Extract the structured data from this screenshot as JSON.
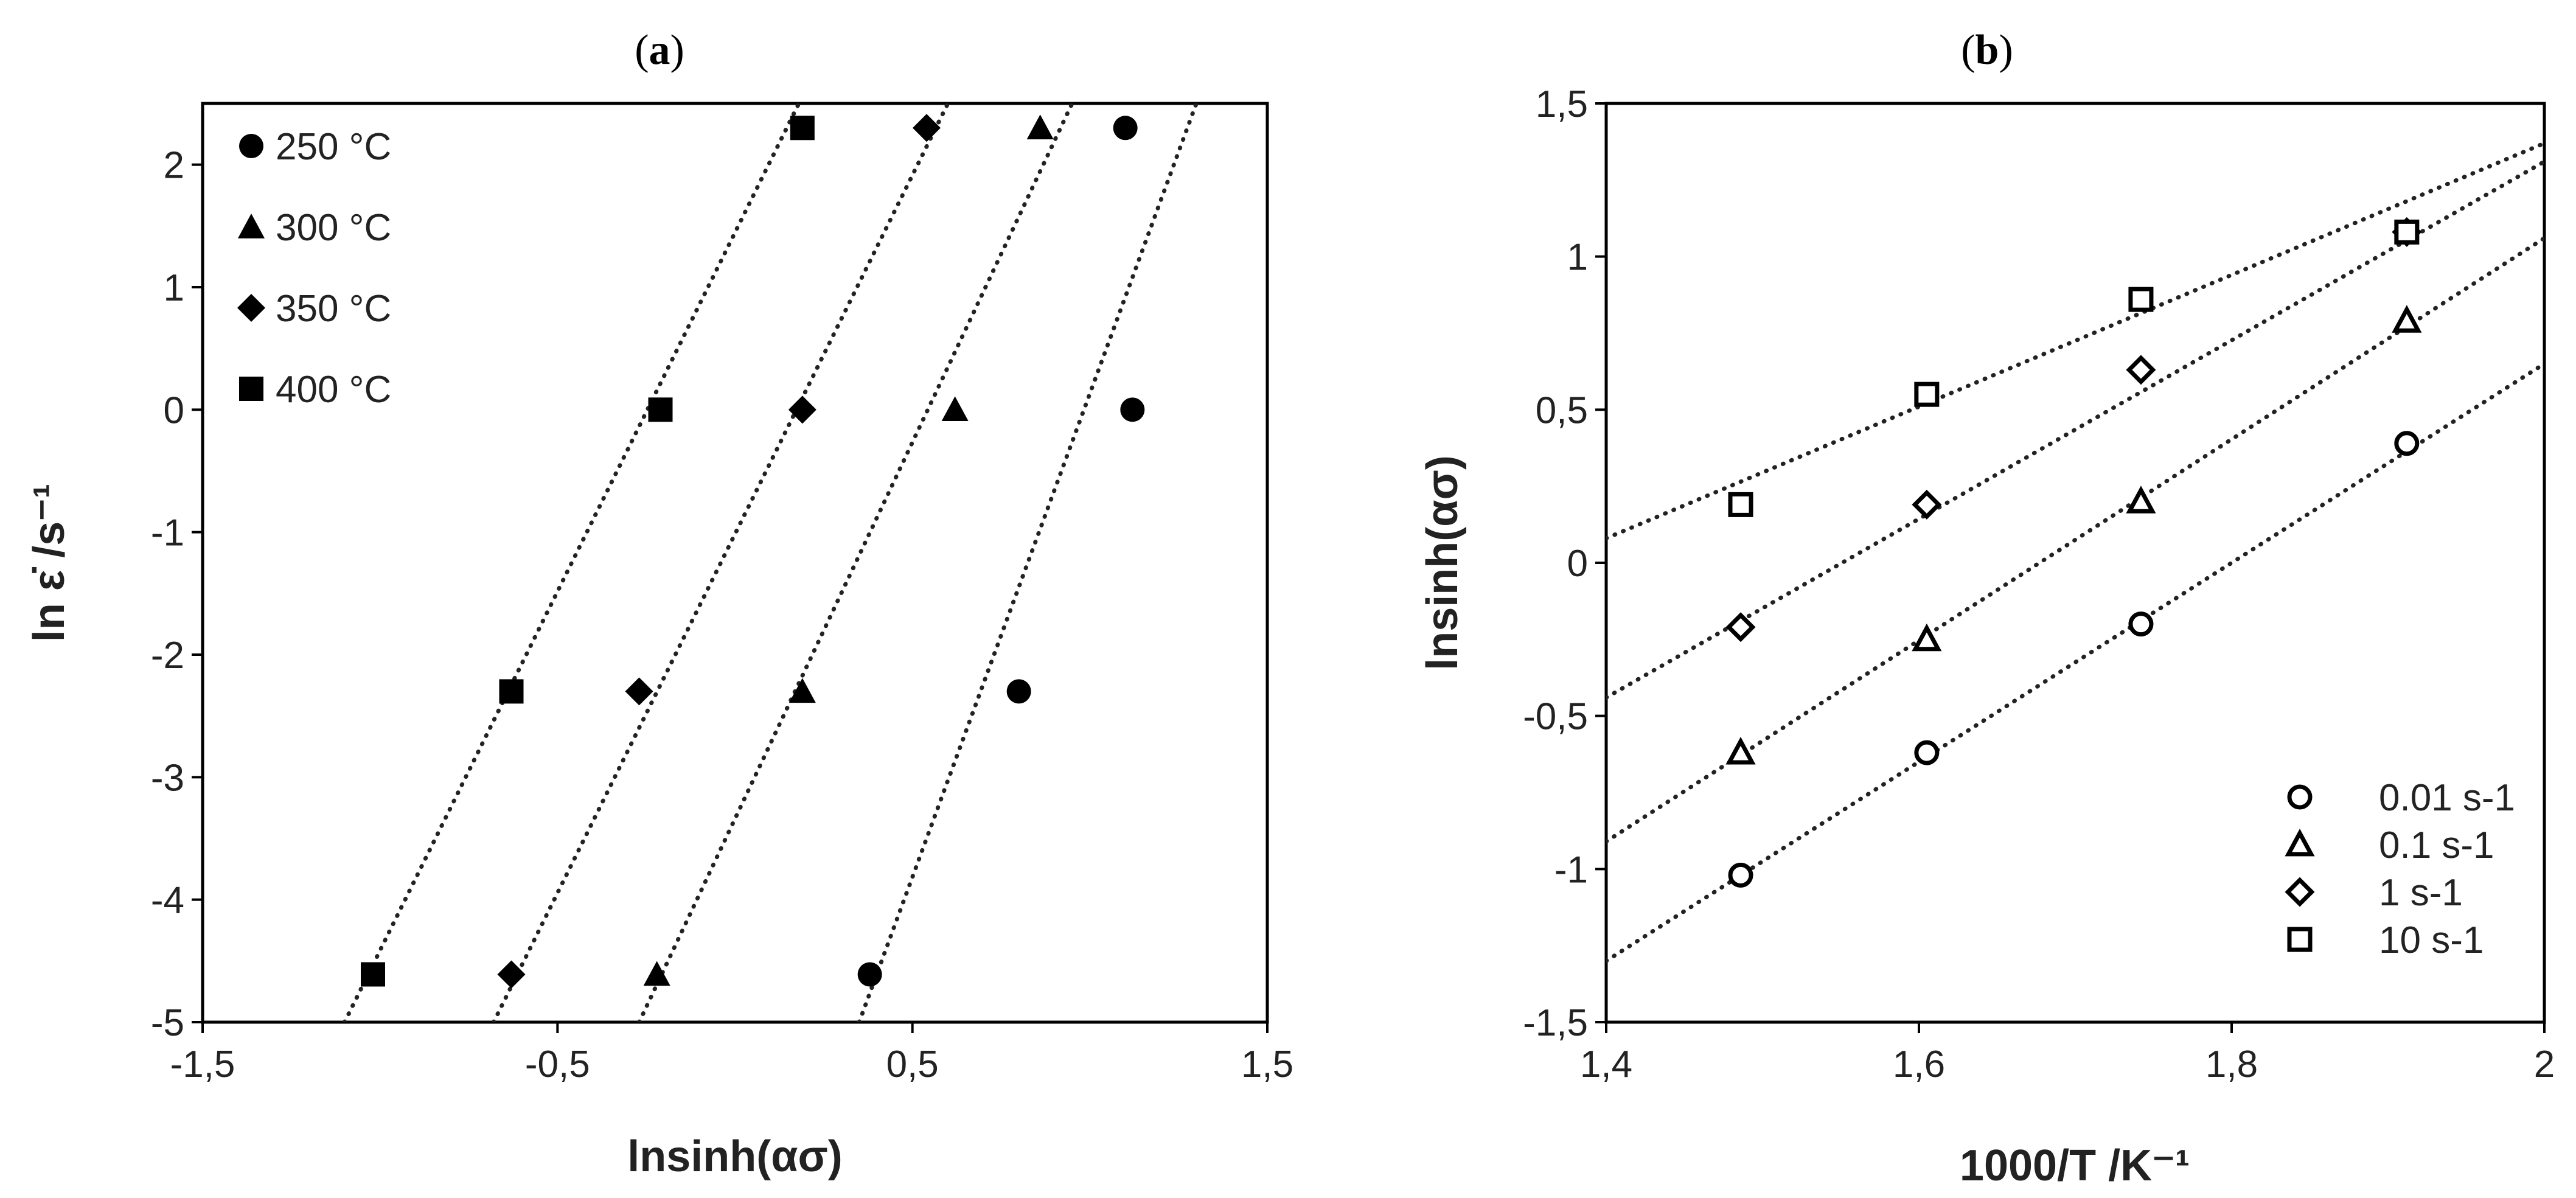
{
  "chart_data": [
    {
      "panel": "(a)",
      "type": "scatter",
      "xlabel": "lnsinh(ασ)",
      "ylabel": "ln ε̇ /s⁻¹",
      "xlim": [
        -1.5,
        1.5
      ],
      "ylim": [
        -5,
        2.5
      ],
      "xticks": [
        "-1,5",
        "-0,5",
        "0,5",
        "1,5"
      ],
      "yticks": [
        "-5",
        "-4",
        "-3",
        "-2",
        "-1",
        "0",
        "1",
        "2"
      ],
      "grid": false,
      "legend_position": "top-left",
      "series": [
        {
          "name": "250 °C",
          "marker": "circle",
          "x": [
            0.38,
            0.8,
            1.12,
            1.1
          ],
          "y": [
            -4.61,
            -2.3,
            0,
            2.3
          ],
          "fit": [
            [
              0.35,
              -5
            ],
            [
              1.3,
              2.5
            ]
          ]
        },
        {
          "name": "300 °C",
          "marker": "triangle",
          "x": [
            -0.22,
            0.19,
            0.62,
            0.86
          ],
          "y": [
            -4.61,
            -2.3,
            0,
            2.3
          ],
          "fit": [
            [
              -0.27,
              -5
            ],
            [
              0.95,
              2.5
            ]
          ]
        },
        {
          "name": "350 °C",
          "marker": "diamond",
          "x": [
            -0.63,
            -0.27,
            0.19,
            0.54
          ],
          "y": [
            -4.61,
            -2.3,
            0,
            2.3
          ],
          "fit": [
            [
              -0.68,
              -5
            ],
            [
              0.6,
              2.5
            ]
          ]
        },
        {
          "name": "400 °C",
          "marker": "square",
          "x": [
            -1.02,
            -0.63,
            -0.21,
            0.19
          ],
          "y": [
            -4.61,
            -2.3,
            0,
            2.3
          ],
          "fit": [
            [
              -1.1,
              -5
            ],
            [
              0.18,
              2.5
            ]
          ]
        }
      ]
    },
    {
      "panel": "(b)",
      "type": "scatter",
      "xlabel": "1000/T   /K⁻¹",
      "ylabel": "lnsinh(ασ)",
      "xlim": [
        1.4,
        2.0
      ],
      "ylim": [
        -1.5,
        1.5
      ],
      "xticks": [
        "1,4",
        "1,6",
        "1,8",
        "2"
      ],
      "yticks": [
        "-1,5",
        "-1",
        "-0,5",
        "0",
        "0,5",
        "1",
        "1,5"
      ],
      "grid": false,
      "legend_position": "bottom-right",
      "series": [
        {
          "name": "0.01 s-1",
          "marker": "circle-open",
          "x": [
            1.486,
            1.605,
            1.742,
            1.912
          ],
          "y": [
            -1.02,
            -0.62,
            -0.2,
            0.39
          ],
          "fit": [
            [
              1.4,
              -1.3
            ],
            [
              2.0,
              0.65
            ]
          ]
        },
        {
          "name": "0.1 s-1",
          "marker": "triangle-open",
          "x": [
            1.486,
            1.605,
            1.742,
            1.912
          ],
          "y": [
            -0.62,
            -0.25,
            0.2,
            0.79
          ],
          "fit": [
            [
              1.4,
              -0.91
            ],
            [
              2.0,
              1.06
            ]
          ]
        },
        {
          "name": "1 s-1",
          "marker": "diamond-open",
          "x": [
            1.486,
            1.605,
            1.742,
            1.912
          ],
          "y": [
            -0.21,
            0.19,
            0.63,
            1.08
          ],
          "fit": [
            [
              1.4,
              -0.44
            ],
            [
              2.0,
              1.31
            ]
          ]
        },
        {
          "name": "10 s-1",
          "marker": "square-open",
          "x": [
            1.486,
            1.605,
            1.742,
            1.912
          ],
          "y": [
            0.19,
            0.55,
            0.86,
            1.08
          ],
          "fit": [
            [
              1.4,
              0.08
            ],
            [
              2.0,
              1.37
            ]
          ]
        }
      ]
    }
  ]
}
